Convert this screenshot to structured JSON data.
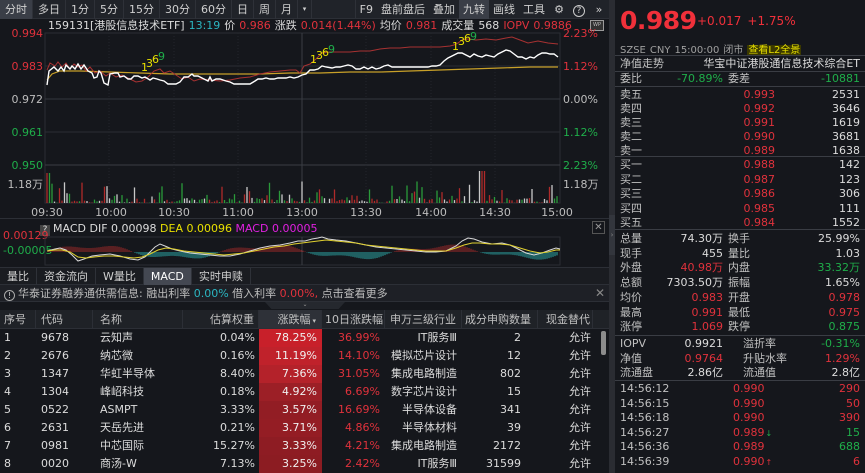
{
  "toolbar": {
    "tabs": [
      "分时",
      "多日",
      "1分",
      "5分",
      "15分",
      "30分",
      "60分",
      "日",
      "周",
      "月"
    ],
    "active_tab": "分时",
    "dropdown": "▾",
    "right_items": [
      "F9",
      "盘前盘后",
      "叠加",
      "九转",
      "画线",
      "工具"
    ],
    "active_right": "九转",
    "icons": {
      "settings": "⚙",
      "help": "?",
      "more": "»"
    }
  },
  "infobar": {
    "code_name": "159131[港股信息技术ETF]",
    "time": "13:19",
    "price_label": "价",
    "price": "0.986",
    "change_label": "涨跌",
    "change": "0.014(1.44%)",
    "avg_label": "均价",
    "avg": "0.981",
    "volume_label": "成交量",
    "volume": "568",
    "iopv_label": "IOPV",
    "iopv": "0.9886",
    "wp_icon": "WP"
  },
  "chart": {
    "y_left": [
      "0.994",
      "0.983",
      "0.972",
      "0.961",
      "0.950"
    ],
    "y_right": [
      "2.23%",
      "1.12%",
      "0.00%",
      "1.12%",
      "2.23%"
    ],
    "vol_label": "1.18万",
    "x_labels": [
      "09:30",
      "10:00",
      "10:30",
      "11:00",
      "13:00",
      "13:30",
      "14:00",
      "14:30",
      "15:00"
    ],
    "nine_turn_marks": [
      "1",
      "3",
      "6",
      "9"
    ],
    "colors": {
      "price": "#ffffff",
      "avg": "#c8a028",
      "iopv": "#b03030",
      "up": "#e0323c",
      "down": "#1fae4a",
      "grid": "#2a2d33"
    }
  },
  "macd": {
    "help": "?",
    "title": "MACD",
    "dif_label": "DIF",
    "dif": "0.00098",
    "dea_label": "DEA",
    "dea": "0.00096",
    "macd_label": "MACD",
    "macd": "0.00005",
    "y_top": "0.00129",
    "y_mid": "-0.00005",
    "close": "✕"
  },
  "subtabs": [
    "量比",
    "资金流向",
    "W量比",
    "MACD",
    "实时申赎"
  ],
  "active_subtab": "MACD",
  "notice": {
    "icon": "!",
    "text1": "华泰证券融券通供需信息:",
    "label1": "融出利率",
    "val1": "0.00%",
    "label2": "借入利率",
    "val2": "0.00%,",
    "more": "点击查看更多",
    "close": "✕",
    "expander": "⌄"
  },
  "table": {
    "headers": [
      "序号",
      "代码",
      "名称",
      "估算权重",
      "涨跌幅",
      "10日涨跌幅",
      "申万三级行业",
      "成分申购数量",
      "现金替代"
    ],
    "sort_arrow": "▾",
    "rows": [
      {
        "no": "1",
        "code": "9678",
        "name": "云知声",
        "weight": "0.04%",
        "chg": "78.25%",
        "chg10": "36.99%",
        "industry": "IT服务Ⅲ",
        "qty": "2",
        "cash": "允许",
        "heat": "#c8202a"
      },
      {
        "no": "2",
        "code": "2676",
        "name": "纳芯微",
        "weight": "0.16%",
        "chg": "11.19%",
        "chg10": "14.10%",
        "industry": "模拟芯片设计",
        "qty": "12",
        "cash": "允许",
        "heat": "#c0222b"
      },
      {
        "no": "3",
        "code": "1347",
        "name": "华虹半导体",
        "weight": "8.40%",
        "chg": "7.36%",
        "chg10": "31.05%",
        "industry": "集成电路制造",
        "qty": "802",
        "cash": "允许",
        "heat": "#b4222a"
      },
      {
        "no": "4",
        "code": "1304",
        "name": "峰岹科技",
        "weight": "0.18%",
        "chg": "4.92%",
        "chg10": "6.69%",
        "industry": "数字芯片设计",
        "qty": "15",
        "cash": "允许",
        "heat": "#9c1f26"
      },
      {
        "no": "5",
        "code": "0522",
        "name": "ASMPT",
        "weight": "3.33%",
        "chg": "3.57%",
        "chg10": "16.69%",
        "industry": "半导体设备",
        "qty": "341",
        "cash": "允许",
        "heat": "#921d24"
      },
      {
        "no": "6",
        "code": "2631",
        "name": "天岳先进",
        "weight": "0.21%",
        "chg": "3.71%",
        "chg10": "4.86%",
        "industry": "半导体材料",
        "qty": "39",
        "cash": "允许",
        "heat": "#941d24"
      },
      {
        "no": "7",
        "code": "0981",
        "name": "中芯国际",
        "weight": "15.27%",
        "chg": "3.33%",
        "chg10": "4.21%",
        "industry": "集成电路制造",
        "qty": "2172",
        "cash": "允许",
        "heat": "#8e1c23"
      },
      {
        "no": "8",
        "code": "0020",
        "name": "商汤-W",
        "weight": "7.13%",
        "chg": "3.25%",
        "chg10": "2.42%",
        "industry": "IT服务Ⅲ",
        "qty": "31599",
        "cash": "允许",
        "heat": "#8c1c22"
      }
    ]
  },
  "quote": {
    "price": "0.989",
    "change": "+0.017",
    "change_pct": "+1.75%",
    "exchange": "SZSE",
    "currency": "CNY",
    "time": "15:00:00",
    "status": "闭市",
    "l2_link": "查看L2全景",
    "nav_trend_label": "净值走势",
    "fund_name": "华宝中证港股通信息技术综合ET",
    "weibi_label": "委比",
    "weibi": "-70.89%",
    "weicha_label": "委差",
    "weicha": "-10881"
  },
  "orderbook": {
    "asks": [
      {
        "label": "卖五",
        "price": "0.993",
        "vol": "2531"
      },
      {
        "label": "卖四",
        "price": "0.992",
        "vol": "3646"
      },
      {
        "label": "卖三",
        "price": "0.991",
        "vol": "1619"
      },
      {
        "label": "卖二",
        "price": "0.990",
        "vol": "3681"
      },
      {
        "label": "卖一",
        "price": "0.989",
        "vol": "1638"
      }
    ],
    "bids": [
      {
        "label": "买一",
        "price": "0.988",
        "vol": "142"
      },
      {
        "label": "买二",
        "price": "0.987",
        "vol": "123"
      },
      {
        "label": "买三",
        "price": "0.986",
        "vol": "306"
      },
      {
        "label": "买四",
        "price": "0.985",
        "vol": "111"
      },
      {
        "label": "买五",
        "price": "0.984",
        "vol": "1552"
      }
    ]
  },
  "stats": [
    {
      "l1": "总量",
      "v1": "74.30万",
      "c1": "white",
      "l2": "换手",
      "v2": "25.99%",
      "c2": "white"
    },
    {
      "l1": "现手",
      "v1": "455",
      "c1": "white",
      "l2": "量比",
      "v2": "1.03",
      "c2": "white"
    },
    {
      "l1": "外盘",
      "v1": "40.98万",
      "c1": "red",
      "l2": "内盘",
      "v2": "33.32万",
      "c2": "green"
    },
    {
      "l1": "总额",
      "v1": "7303.50万",
      "c1": "white",
      "l2": "振幅",
      "v2": "1.65%",
      "c2": "white"
    },
    {
      "l1": "均价",
      "v1": "0.983",
      "c1": "red",
      "l2": "开盘",
      "v2": "0.978",
      "c2": "red"
    },
    {
      "l1": "最高",
      "v1": "0.991",
      "c1": "red",
      "l2": "最低",
      "v2": "0.975",
      "c2": "red"
    },
    {
      "l1": "涨停",
      "v1": "1.069",
      "c1": "red",
      "l2": "跌停",
      "v2": "0.875",
      "c2": "green"
    }
  ],
  "stats2": [
    {
      "l1": "IOPV",
      "v1": "0.9921",
      "c1": "white",
      "l2": "溢折率",
      "v2": "-0.31%",
      "c2": "green"
    },
    {
      "l1": "净值",
      "v1": "0.9764",
      "c1": "red",
      "l2": "升贴水率",
      "v2": "1.29%",
      "c2": "red"
    },
    {
      "l1": "流通盘",
      "v1": "2.86亿",
      "c1": "white",
      "l2": "流通值",
      "v2": "2.8亿",
      "c2": "white"
    }
  ],
  "ticks": [
    {
      "time": "14:56:12",
      "price": "0.990",
      "arrow": "",
      "vol": "290",
      "vc": "red"
    },
    {
      "time": "14:56:15",
      "price": "0.990",
      "arrow": "",
      "vol": "50",
      "vc": "red"
    },
    {
      "time": "14:56:18",
      "price": "0.990",
      "arrow": "",
      "vol": "390",
      "vc": "red"
    },
    {
      "time": "14:56:27",
      "price": "0.989",
      "arrow": "↓",
      "vol": "15",
      "vc": "green"
    },
    {
      "time": "14:56:36",
      "price": "0.989",
      "arrow": "",
      "vol": "688",
      "vc": "green"
    },
    {
      "time": "14:56:39",
      "price": "0.990",
      "arrow": "↑",
      "vol": "6",
      "vc": "red"
    }
  ]
}
